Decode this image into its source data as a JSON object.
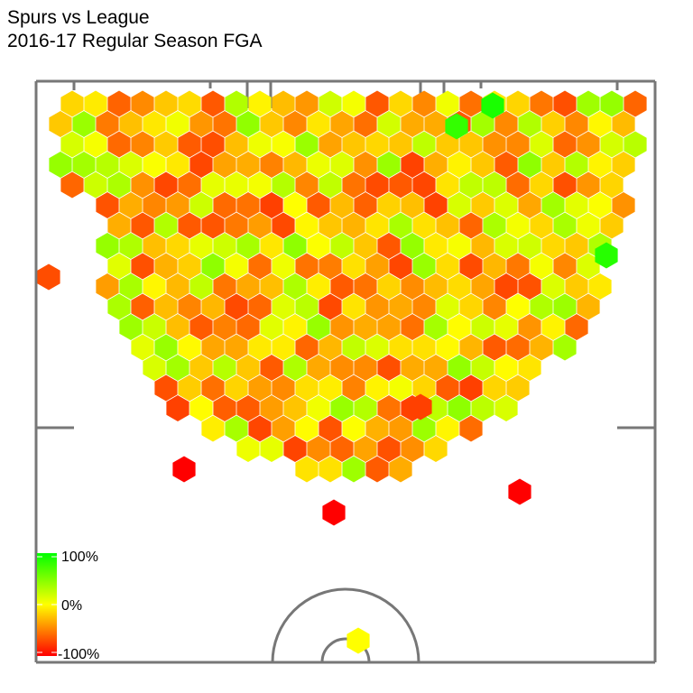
{
  "chart_data": {
    "type": "heatmap",
    "title": "Spurs vs League",
    "subtitle": "2016-17 Regular Season FGA",
    "legend": {
      "labels": [
        "100%",
        "0%",
        "-100%"
      ],
      "range": [
        -100,
        100
      ],
      "placement": "bottom-left"
    },
    "color_scale": {
      "low": "#ff0000",
      "mid": "#ffff00",
      "high": "#00ff00"
    },
    "grid": false
  }
}
